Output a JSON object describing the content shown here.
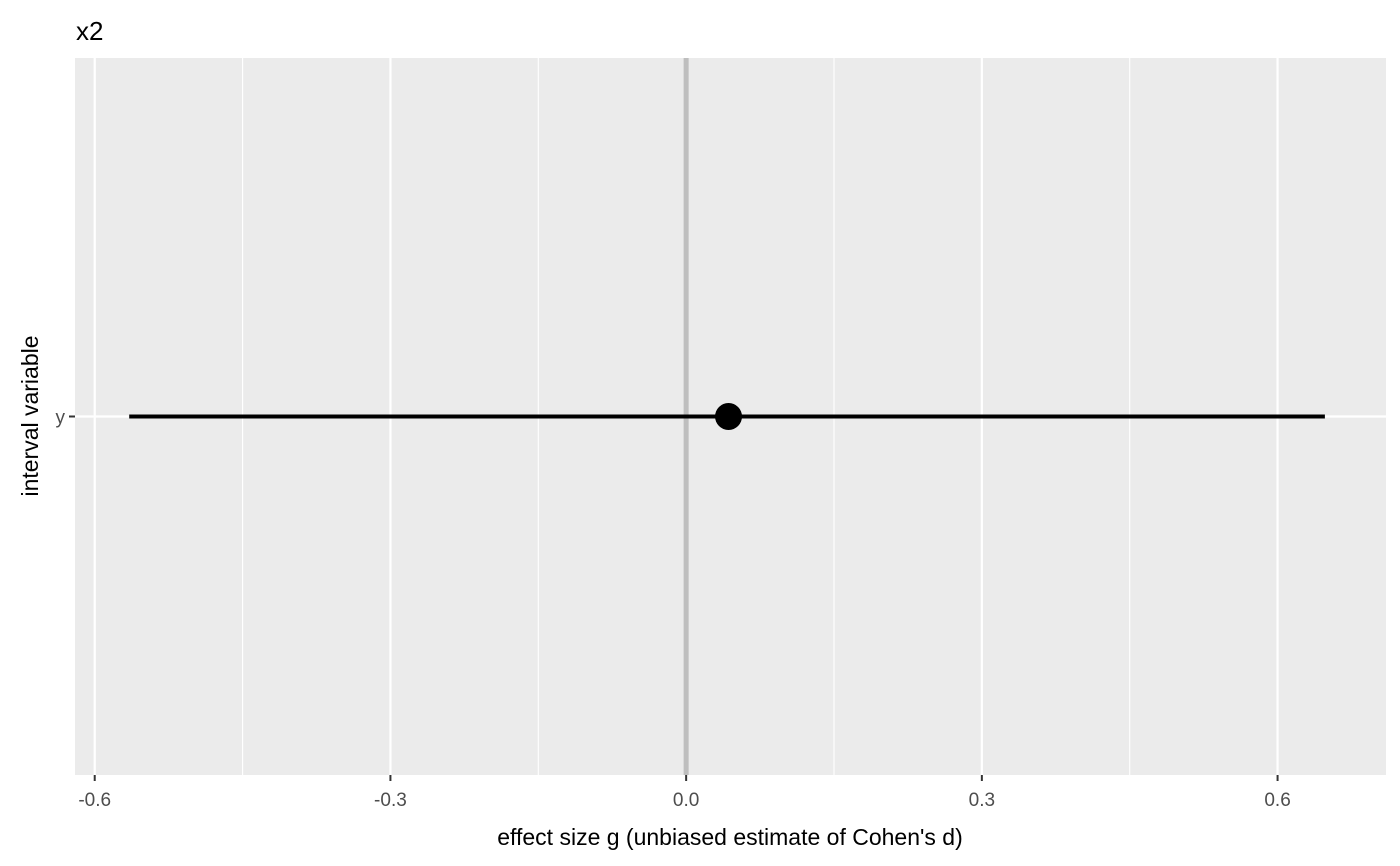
{
  "chart_data": {
    "type": "forest",
    "title": "x2",
    "xlabel": "effect size g (unbiased estimate of Cohen's d)",
    "ylabel": "interval variable",
    "xlim": [
      -0.62,
      0.71
    ],
    "x_ticks": [
      -0.6,
      -0.3,
      0.0,
      0.3,
      0.6
    ],
    "x_tick_labels": [
      "-0.6",
      "-0.3",
      "0.0",
      "0.3",
      "0.6"
    ],
    "x_minor_ticks": [
      -0.45,
      -0.15,
      0.15,
      0.45
    ],
    "categories": [
      "y"
    ],
    "points": [
      {
        "category": "y",
        "estimate": 0.043,
        "lower": -0.565,
        "upper": 0.648
      }
    ],
    "reference_line": 0.0,
    "grid": true,
    "colors": {
      "panel_background": "#ebebeb",
      "grid_line": "#ffffff",
      "reference_line": "#bebebe",
      "interval": "#000000",
      "point": "#000000",
      "tick_label": "#4d4d4d"
    }
  }
}
